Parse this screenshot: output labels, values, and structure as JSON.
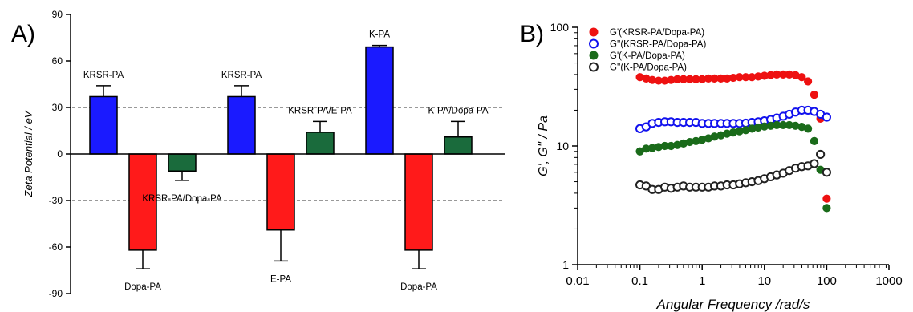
{
  "chart_data": [
    {
      "panel_label": "A)",
      "type": "bar",
      "ylabel": "Zeta Potential / eV",
      "ylim": [
        -90,
        90
      ],
      "yticks": [
        90,
        60,
        30,
        0,
        -30,
        -60,
        -90
      ],
      "reference_lines": [
        30,
        -30
      ],
      "colors": {
        "KRSR-PA": "#1a1aff",
        "K-PA": "#1a1aff",
        "Dopa-PA": "#ff1a1a",
        "E-PA": "#ff1a1a",
        "mixture": "#1a6b3c"
      },
      "groups": [
        {
          "bars": [
            {
              "label": "KRSR-PA",
              "value": 37,
              "error": 7,
              "color": "#1a1aff"
            },
            {
              "label": "Dopa-PA",
              "value": -62,
              "error": 12,
              "color": "#ff1a1a"
            },
            {
              "label": "KRSR-PA/Dopa-PA",
              "value": -11,
              "error": 6,
              "color": "#1a6b3c"
            }
          ]
        },
        {
          "bars": [
            {
              "label": "KRSR-PA",
              "value": 37,
              "error": 7,
              "color": "#1a1aff"
            },
            {
              "label": "E-PA",
              "value": -49,
              "error": 20,
              "color": "#ff1a1a"
            },
            {
              "label": "KRSR-PA/E-PA",
              "value": 14,
              "error": 7,
              "color": "#1a6b3c"
            }
          ]
        },
        {
          "bars": [
            {
              "label": "K-PA",
              "value": 69,
              "error": 1,
              "color": "#1a1aff"
            },
            {
              "label": "Dopa-PA",
              "value": -62,
              "error": 12,
              "color": "#ff1a1a"
            },
            {
              "label": "K-PA/Dopa-PA",
              "value": 11,
              "error": 10,
              "color": "#1a6b3c"
            }
          ]
        }
      ]
    },
    {
      "panel_label": "B)",
      "type": "scatter",
      "xlabel": "Angular Frequency /rad/s",
      "ylabel": "G', G'' / Pa",
      "x_scale": "log",
      "y_scale": "log",
      "xlim": [
        0.01,
        1000
      ],
      "ylim": [
        1,
        100
      ],
      "xticks": [
        "0.01",
        "0.1",
        "1",
        "10",
        "100",
        "1000"
      ],
      "yticks": [
        "1",
        "10",
        "100"
      ],
      "legend_position": "top-left",
      "x": [
        0.1,
        0.126,
        0.158,
        0.2,
        0.251,
        0.316,
        0.398,
        0.501,
        0.631,
        0.794,
        1.0,
        1.26,
        1.58,
        2.0,
        2.51,
        3.16,
        3.98,
        5.01,
        6.31,
        7.94,
        10.0,
        12.6,
        15.8,
        20.0,
        25.1,
        31.6,
        39.8,
        50.1,
        63.1,
        79.4,
        100
      ],
      "series": [
        {
          "name": "G'(KRSR-PA/Dopa-PA)",
          "color": "#ee1111",
          "filled": true,
          "values": [
            38,
            37,
            36,
            35.5,
            35.5,
            36,
            36.5,
            36.5,
            36.5,
            36.5,
            36.5,
            37,
            37,
            37,
            37,
            37.5,
            38,
            38,
            38,
            38.5,
            39,
            39.5,
            40,
            40,
            40,
            39.5,
            38,
            35,
            27,
            17,
            3.6
          ]
        },
        {
          "name": "G''(KRSR-PA/Dopa-PA)",
          "color": "#1111ee",
          "filled": false,
          "values": [
            14,
            14.5,
            15.5,
            15.8,
            16,
            16,
            15.8,
            15.8,
            15.8,
            15.8,
            15.5,
            15.5,
            15.5,
            15.5,
            15.5,
            15.5,
            15.5,
            15.6,
            15.8,
            16,
            16.3,
            16.7,
            17.2,
            17.8,
            18.5,
            19.3,
            20,
            20,
            19.5,
            18.5,
            17.5
          ]
        },
        {
          "name": "G'(K-PA/Dopa-PA)",
          "color": "#1a6b1a",
          "filled": true,
          "values": [
            9,
            9.5,
            9.6,
            9.8,
            10,
            10,
            10.2,
            10.5,
            10.8,
            11,
            11.3,
            11.6,
            12,
            12.3,
            12.7,
            13,
            13.3,
            13.6,
            14,
            14.3,
            14.6,
            14.8,
            15,
            15,
            15,
            14.8,
            14.5,
            14,
            11,
            6.3,
            3
          ]
        },
        {
          "name": "G''(K-PA/Dopa-PA)",
          "color": "#222222",
          "filled": false,
          "values": [
            4.7,
            4.6,
            4.3,
            4.3,
            4.5,
            4.4,
            4.5,
            4.6,
            4.5,
            4.5,
            4.5,
            4.5,
            4.6,
            4.6,
            4.7,
            4.7,
            4.8,
            4.9,
            5.0,
            5.1,
            5.3,
            5.5,
            5.7,
            5.9,
            6.2,
            6.5,
            6.7,
            6.8,
            7.1,
            8.5,
            6.0
          ]
        }
      ]
    }
  ]
}
